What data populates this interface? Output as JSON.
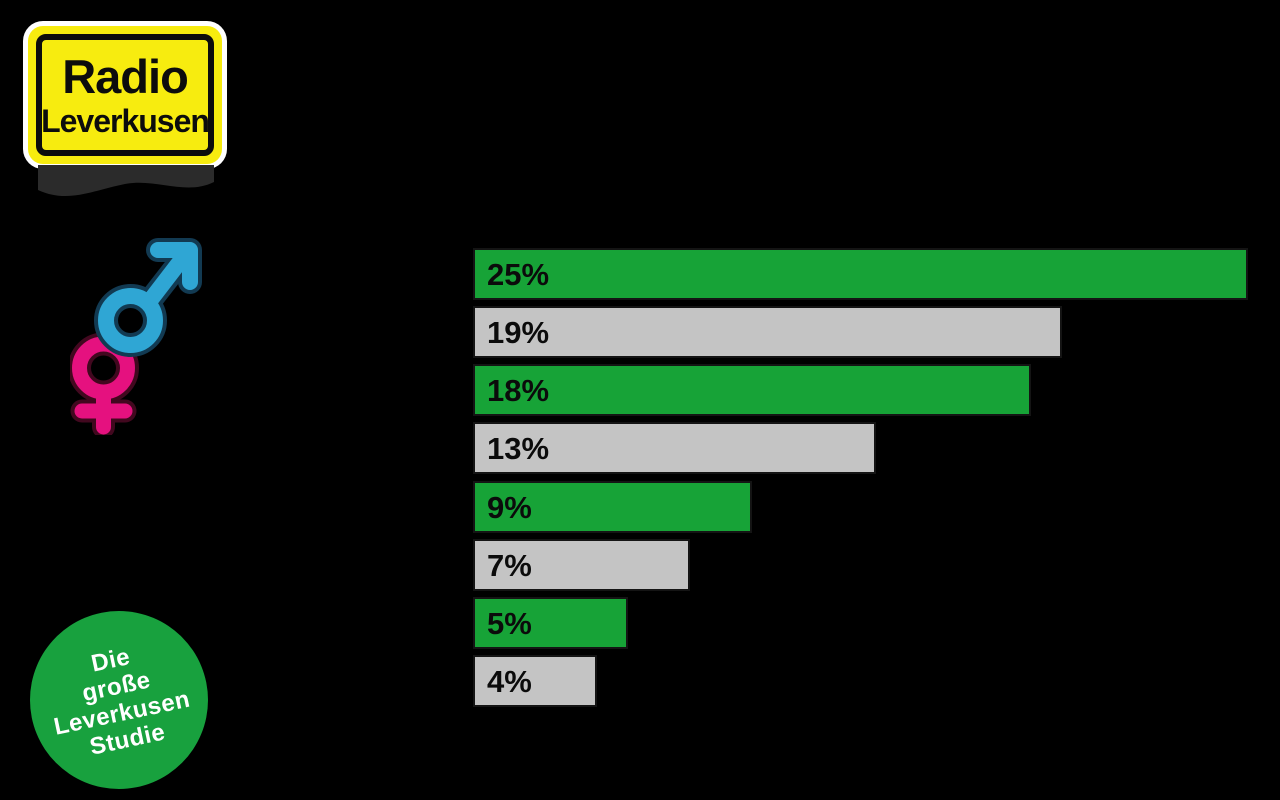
{
  "canvas": {
    "background": "#000000"
  },
  "logo": {
    "line1": "Radio",
    "line2": "Leverkusen",
    "bg_color": "#f7ec0f",
    "text_color": "#0c0c0c",
    "inner_border_color": "#0c0c0c",
    "outer_border_color": "#ffffff",
    "shadow_color": "#2b2b2b"
  },
  "gender_icon": {
    "male_color": "#2fa6d4",
    "male_outline_color": "#123a52",
    "female_color": "#e5117f",
    "female_outline_color": "#42081f"
  },
  "badge": {
    "lines": [
      "Die",
      "große",
      "Leverkusen",
      "Studie"
    ],
    "bg_color": "#18a13e",
    "text_color": "#ffffff"
  },
  "chart_data": {
    "type": "bar",
    "orientation": "horizontal",
    "values": [
      25,
      19,
      18,
      13,
      9,
      7,
      5,
      4
    ],
    "labels": [
      "25%",
      "19%",
      "18%",
      "13%",
      "9%",
      "7%",
      "5%",
      "4%"
    ],
    "bar_colors": [
      "#17a337",
      "#c4c4c4",
      "#17a337",
      "#c4c4c4",
      "#17a337",
      "#c4c4c4",
      "#17a337",
      "#c4c4c4"
    ],
    "border_color": "#141414",
    "label_color": "#0b0b0b",
    "xlim": [
      0,
      25
    ],
    "grid": false,
    "legend": "none",
    "title": ""
  }
}
